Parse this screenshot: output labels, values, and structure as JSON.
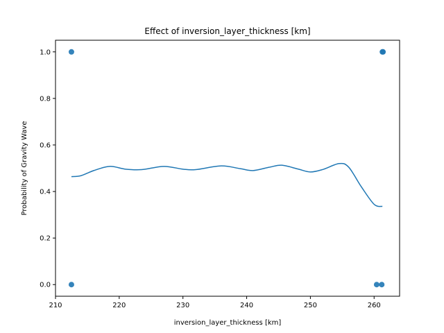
{
  "chart_data": {
    "type": "scatter",
    "title": "Effect of inversion_layer_thickness [km]",
    "xlabel": "inversion_layer_thickness [km]",
    "ylabel": "Probability of Gravity Wave",
    "xlim": [
      210,
      264
    ],
    "ylim": [
      -0.05,
      1.05
    ],
    "xticks": [
      210,
      220,
      230,
      240,
      250,
      260
    ],
    "yticks": [
      0.0,
      0.2,
      0.4,
      0.6,
      0.8,
      1.0
    ],
    "xtick_labels": [
      "210",
      "220",
      "230",
      "240",
      "250",
      "260"
    ],
    "ytick_labels": [
      "0.0",
      "0.2",
      "0.4",
      "0.6",
      "0.8",
      "1.0"
    ],
    "grid": false,
    "colors": {
      "points": "#1f77b4",
      "curve": "#1f77b4"
    },
    "series": [
      {
        "kind": "points",
        "x": [
          212.5,
          212.5,
          260.4,
          261.2,
          261.4,
          261.3
        ],
        "y": [
          1.0,
          0.0,
          0.0,
          0.0,
          1.0,
          1.0
        ]
      },
      {
        "kind": "line",
        "x": [
          212.5,
          214,
          216,
          218.5,
          221,
          223.5,
          227,
          230,
          232,
          236,
          239,
          241,
          243.5,
          245.5,
          248,
          250,
          252,
          254.5,
          256,
          258,
          260,
          261.3
        ],
        "y": [
          0.464,
          0.468,
          0.49,
          0.508,
          0.496,
          0.494,
          0.508,
          0.496,
          0.494,
          0.51,
          0.498,
          0.49,
          0.504,
          0.513,
          0.497,
          0.484,
          0.495,
          0.52,
          0.505,
          0.42,
          0.345,
          0.336
        ]
      }
    ]
  }
}
